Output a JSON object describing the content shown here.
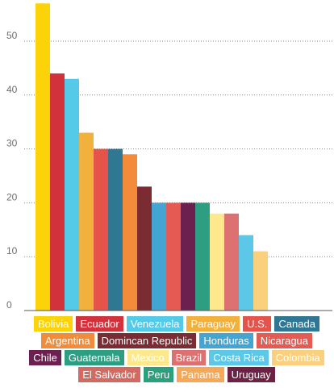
{
  "chart_data": {
    "type": "bar",
    "title": "",
    "xlabel": "",
    "ylabel": "",
    "ylim": [
      0,
      58
    ],
    "y_ticks": [
      0,
      10,
      20,
      30,
      40,
      50
    ],
    "grid": "horizontal dotted",
    "legend_position": "bottom",
    "categories": [
      "Bolivia",
      "Ecuador",
      "Venezuela",
      "Paraguay",
      "U.S.",
      "Canada",
      "Argentina",
      "Domincan Republic",
      "Honduras",
      "Nicaragua",
      "Chile",
      "Guatemala",
      "Mexico",
      "Brazil",
      "Costa Rica",
      "Colombia",
      "El Salvador",
      "Peru",
      "Panama",
      "Uruguay"
    ],
    "values": [
      57,
      44,
      43,
      33,
      30,
      30,
      29,
      23,
      20,
      20,
      20,
      20,
      18,
      18,
      14,
      11,
      null,
      null,
      null,
      null
    ],
    "colors": [
      "#fcd208",
      "#d2323c",
      "#54c9e8",
      "#f2b03c",
      "#e5534b",
      "#2f7793",
      "#f28c3a",
      "#7a2c32",
      "#44a5d2",
      "#e55a52",
      "#6b2050",
      "#2e9e82",
      "#fde98c",
      "#dd7070",
      "#5cc7e6",
      "#fbd07c",
      "#d36a62",
      "#2ba07d",
      "#f6a757",
      "#6d2244"
    ]
  }
}
